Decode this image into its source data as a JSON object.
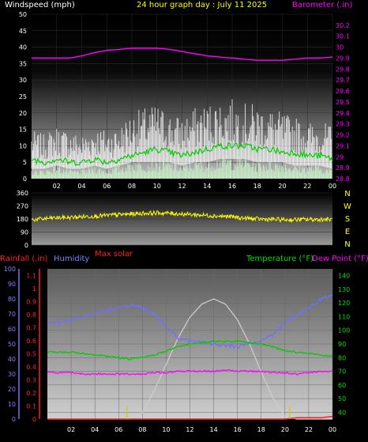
{
  "header": {
    "left": "Windspeed (mph)",
    "center": "24 hour graph day : July 11 2025",
    "right": "Barometer (.in)"
  },
  "labels": {
    "rainfall": "Rainfall (.in)",
    "humidity": "Humidity",
    "max_solar": "Max solar",
    "temperature": "Temperature (°F)",
    "dew_point": "Dew Point (°F)"
  },
  "colors": {
    "wind_gust": "#ffffff",
    "wind_avg": "#00cc00",
    "wind_min": "#ccffcc",
    "barometer": "#ff00ff",
    "direction": "#ffff00",
    "rain": "#ff2020",
    "humidity": "#7070ff",
    "temperature": "#00cc00",
    "dew_point": "#ff00ff",
    "solar": "#cccccc",
    "sunrise_marker": "#cccc00"
  },
  "chart_data": [
    {
      "type": "line",
      "name": "wind-barometer",
      "x_tick_labels": [
        "02",
        "04",
        "06",
        "08",
        "10",
        "12",
        "14",
        "16",
        "18",
        "20",
        "22",
        "00"
      ],
      "y_left_ticks": [
        "0",
        "5",
        "10",
        "15",
        "20",
        "25",
        "30",
        "35",
        "40",
        "45",
        "50"
      ],
      "y_right_ticks": [
        "28.8",
        "28.9",
        "29",
        "29.1",
        "29.2",
        "29.3",
        "29.4",
        "29.5",
        "29.6",
        "29.7",
        "29.8",
        "29.9",
        "30",
        "30.1",
        "30.2"
      ],
      "ylim_left": [
        0,
        50
      ],
      "ylim_right": [
        28.8,
        30.3
      ],
      "x_hours": [
        0,
        1,
        2,
        3,
        4,
        5,
        6,
        7,
        8,
        9,
        10,
        11,
        12,
        13,
        14,
        15,
        16,
        17,
        18,
        19,
        20,
        21,
        22,
        23,
        24
      ],
      "series": [
        {
          "values": [
            11,
            10,
            12,
            11,
            10,
            12,
            11,
            12,
            15,
            16,
            17,
            15,
            14,
            16,
            17,
            18,
            18,
            17,
            17,
            16,
            15,
            14,
            13,
            13,
            12
          ]
        },
        {
          "values": [
            6,
            5,
            6,
            5,
            5,
            6,
            5,
            6,
            7,
            8,
            9,
            8,
            7,
            8,
            9,
            10,
            10,
            10,
            9,
            9,
            8,
            8,
            7,
            7,
            6
          ]
        },
        {
          "values": [
            2,
            2,
            3,
            2,
            2,
            3,
            2,
            3,
            4,
            4,
            4,
            4,
            3,
            4,
            4,
            5,
            5,
            5,
            4,
            4,
            4,
            3,
            3,
            3,
            2
          ]
        },
        {
          "values": [
            29.9,
            29.9,
            29.9,
            29.9,
            29.92,
            29.95,
            29.97,
            29.98,
            29.99,
            29.99,
            29.99,
            29.98,
            29.96,
            29.94,
            29.92,
            29.91,
            29.9,
            29.89,
            29.88,
            29.88,
            29.88,
            29.89,
            29.9,
            29.9,
            29.91
          ]
        }
      ]
    },
    {
      "type": "line",
      "name": "wind-direction",
      "y_ticks": [
        "0",
        "90",
        "180",
        "270",
        "360"
      ],
      "y_right_letters": [
        "N",
        "W",
        "S",
        "E",
        "N"
      ],
      "ylim": [
        0,
        360
      ],
      "x_hours": [
        0,
        1,
        2,
        3,
        4,
        5,
        6,
        7,
        8,
        9,
        10,
        11,
        12,
        13,
        14,
        15,
        16,
        17,
        18,
        19,
        20,
        21,
        22,
        23,
        24
      ],
      "series": [
        {
          "values": [
            175,
            182,
            188,
            190,
            195,
            200,
            205,
            210,
            215,
            220,
            222,
            220,
            215,
            210,
            205,
            200,
            195,
            185,
            180,
            178,
            175,
            175,
            177,
            178,
            176
          ]
        }
      ]
    },
    {
      "type": "line",
      "name": "rain-humidity-temperature",
      "y_left_humidity_ticks": [
        "0",
        "10",
        "20",
        "30",
        "40",
        "50",
        "60",
        "70",
        "80",
        "90",
        "100"
      ],
      "y_left_rain_ticks": [
        "0",
        "0.1",
        "0.2",
        "0.3",
        "0.4",
        "0.5",
        "0.6",
        "0.7",
        "0.8",
        "0.9",
        "1",
        "1.1"
      ],
      "y_right_ticks": [
        "40",
        "50",
        "60",
        "70",
        "80",
        "90",
        "100",
        "110",
        "120",
        "130",
        "140"
      ],
      "x_tick_labels": [
        "02",
        "04",
        "06",
        "08",
        "10",
        "12",
        "14",
        "16",
        "18",
        "20",
        "22",
        "00"
      ],
      "ylim_humidity": [
        0,
        100
      ],
      "ylim_rain": [
        0,
        1.15
      ],
      "ylim_temp": [
        35,
        145
      ],
      "x_hours": [
        0,
        1,
        2,
        3,
        4,
        5,
        6,
        7,
        8,
        9,
        10,
        11,
        12,
        13,
        14,
        15,
        16,
        17,
        18,
        19,
        20,
        21,
        22,
        23,
        24
      ],
      "series": [
        {
          "values": [
            0,
            0,
            0,
            0,
            0,
            0,
            0,
            0,
            0,
            0,
            0,
            0,
            0,
            0,
            0,
            0,
            0,
            0,
            0,
            0,
            0,
            0.01,
            0.01,
            0.01,
            0.02
          ]
        },
        {
          "values": [
            64,
            64,
            66,
            68,
            70,
            72,
            74,
            76,
            74,
            70,
            62,
            54,
            52,
            51,
            50,
            49,
            48,
            50,
            52,
            56,
            64,
            70,
            74,
            80,
            82
          ]
        },
        {
          "values": [
            84,
            84,
            84,
            83,
            82,
            81,
            80,
            79,
            80,
            82,
            85,
            88,
            90,
            91,
            92,
            92,
            92,
            91,
            90,
            88,
            85,
            84,
            83,
            82,
            81
          ]
        },
        {
          "values": [
            69,
            69,
            69,
            68,
            68,
            68,
            68,
            68,
            68,
            69,
            69,
            70,
            70,
            70,
            70,
            71,
            70,
            70,
            70,
            69,
            69,
            68,
            69,
            70,
            70
          ]
        },
        {
          "values": [
            0,
            0,
            0,
            0,
            0,
            0,
            0,
            0,
            0.05,
            0.22,
            0.42,
            0.62,
            0.78,
            0.88,
            0.92,
            0.88,
            0.76,
            0.58,
            0.36,
            0.16,
            0.02,
            0,
            0,
            0,
            0
          ]
        }
      ],
      "markers_hours": [
        6.7,
        20.4
      ]
    }
  ]
}
